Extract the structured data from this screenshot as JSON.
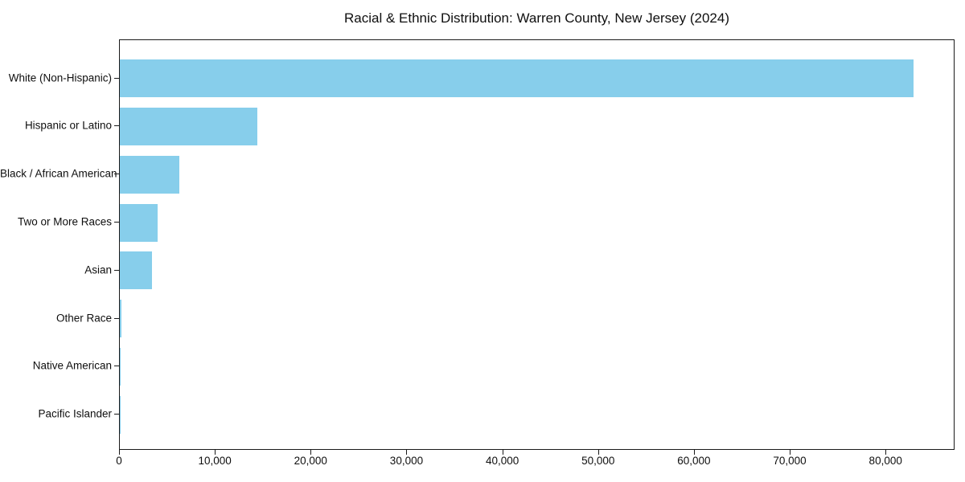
{
  "chart_data": {
    "type": "bar",
    "orientation": "horizontal",
    "title": "Racial & Ethnic Distribution: Warren County, New Jersey (2024)",
    "xlabel": "",
    "ylabel": "",
    "categories": [
      "White (Non-Hispanic)",
      "Hispanic or Latino",
      "Black / African American",
      "Two or More Races",
      "Asian",
      "Other Race",
      "Native American",
      "Pacific Islander"
    ],
    "values": [
      83000,
      14350,
      6250,
      3950,
      3400,
      200,
      60,
      25
    ],
    "xlim": [
      0,
      87200
    ],
    "xticks": [
      0,
      10000,
      20000,
      30000,
      40000,
      50000,
      60000,
      70000,
      80000
    ],
    "xtick_labels": [
      "0",
      "10,000",
      "20,000",
      "30,000",
      "40,000",
      "50,000",
      "60,000",
      "70,000",
      "80,000"
    ],
    "bar_color": "#87CEEB",
    "grid": false,
    "legend": null,
    "background_color": "#ffffff",
    "spine_color": "#1a1a1a"
  }
}
